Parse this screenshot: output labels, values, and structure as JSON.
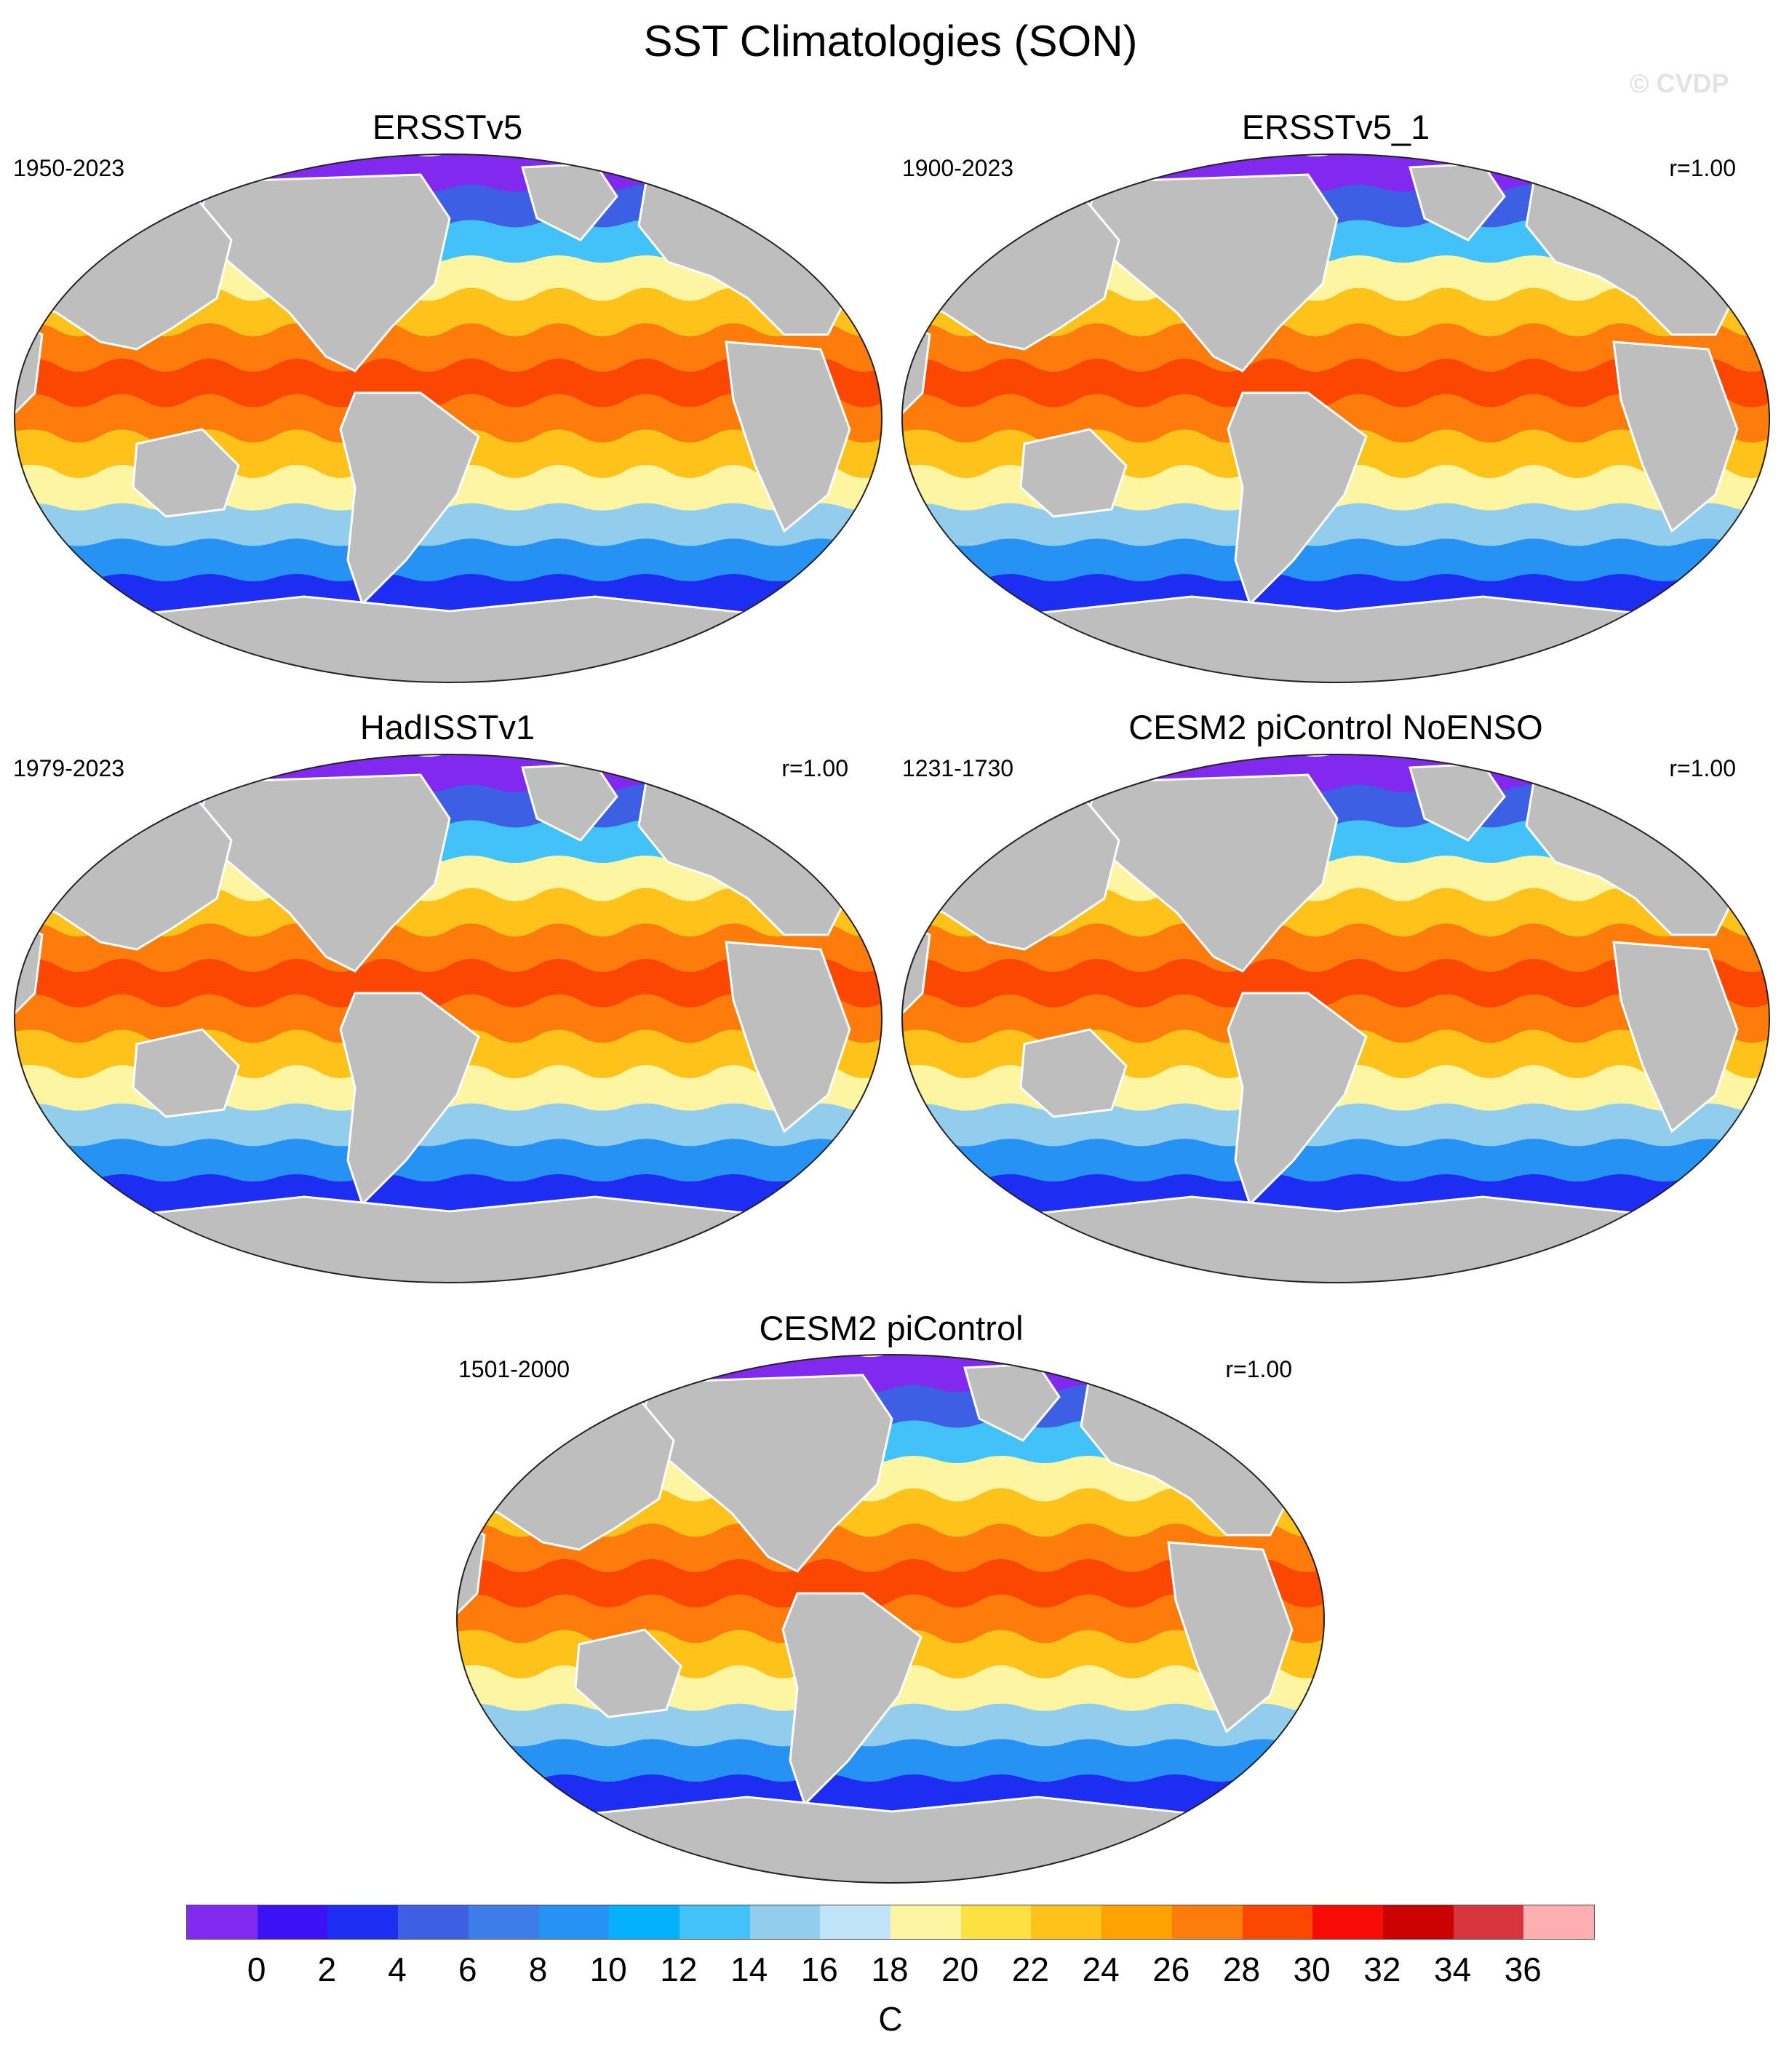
{
  "figure": {
    "title": "SST Climatologies (SON)",
    "watermark": "© CVDP"
  },
  "panels": [
    {
      "title": "ERSSTv5",
      "period": "1950-2023",
      "correlation": ""
    },
    {
      "title": "ERSSTv5_1",
      "period": "1900-2023",
      "correlation": "r=1.00"
    },
    {
      "title": "HadISSTv1",
      "period": "1979-2023",
      "correlation": "r=1.00"
    },
    {
      "title": "CESM2 piControl NoENSO",
      "period": "1231-1730",
      "correlation": "r=1.00"
    },
    {
      "title": "CESM2 piControl",
      "period": "1501-2000",
      "correlation": "r=1.00"
    }
  ],
  "colorbar": {
    "unit": "C",
    "tick_labels": [
      "0",
      "2",
      "4",
      "6",
      "8",
      "10",
      "12",
      "14",
      "16",
      "18",
      "20",
      "22",
      "24",
      "26",
      "28",
      "30",
      "32",
      "34",
      "36"
    ],
    "colors": [
      "#8229f0",
      "#3d11f5",
      "#1d2df2",
      "#3d5fe3",
      "#3e7de9",
      "#2692f3",
      "#05b1fb",
      "#42c2f8",
      "#93cdee",
      "#bfe3f8",
      "#fdf5a1",
      "#fde042",
      "#fec21a",
      "#fea202",
      "#fd7c0c",
      "#fc4702",
      "#f70b05",
      "#cc0202",
      "#d8343e",
      "#fdaeb0"
    ]
  },
  "map_colors": {
    "land": "#bebebe",
    "coast": "#ffffff",
    "band_colors_north_to_south": [
      "#8229f0",
      "#3d5fe3",
      "#42c2f8",
      "#fdf5a1",
      "#fec21a",
      "#fd7c0c",
      "#fc4702",
      "#fd7c0c",
      "#fec21a",
      "#fdf5a1",
      "#93cdee",
      "#2692f3",
      "#1d2df2",
      "#3d11f5",
      "#8229f0"
    ]
  }
}
